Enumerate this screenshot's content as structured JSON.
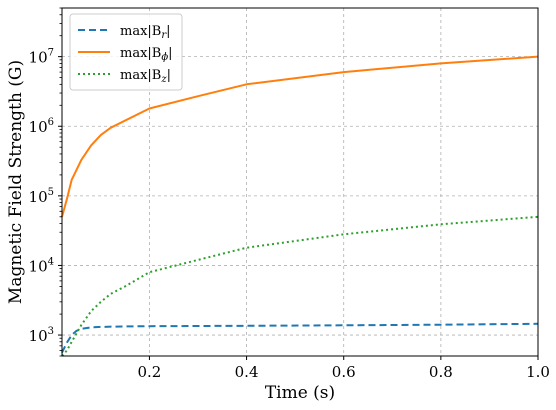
{
  "chart_data": {
    "type": "line",
    "xlabel": "Time (s)",
    "ylabel": "Magnetic Field Strength (G)",
    "xlim": [
      0.02,
      1.0
    ],
    "ylim": [
      500,
      50000000
    ],
    "yscale": "log",
    "grid": true,
    "legend_position": "top-left",
    "x_ticks": [
      {
        "value": 0.2,
        "label": "0.2"
      },
      {
        "value": 0.4,
        "label": "0.4"
      },
      {
        "value": 0.6,
        "label": "0.6"
      },
      {
        "value": 0.8,
        "label": "0.8"
      },
      {
        "value": 1.0,
        "label": "1.0"
      }
    ],
    "y_ticks": [
      {
        "value": 1000,
        "base": "10",
        "exp": "3"
      },
      {
        "value": 10000,
        "base": "10",
        "exp": "4"
      },
      {
        "value": 100000,
        "base": "10",
        "exp": "5"
      },
      {
        "value": 1000000,
        "base": "10",
        "exp": "6"
      },
      {
        "value": 10000000,
        "base": "10",
        "exp": "7"
      }
    ],
    "series": [
      {
        "name_prefix": "max|B",
        "name_sub": "r",
        "name_suffix": "|",
        "color": "#1f77b4",
        "dash": "7,4",
        "points": [
          [
            0.02,
            560
          ],
          [
            0.03,
            780
          ],
          [
            0.04,
            1000
          ],
          [
            0.05,
            1150
          ],
          [
            0.06,
            1230
          ],
          [
            0.08,
            1290
          ],
          [
            0.1,
            1310
          ],
          [
            0.15,
            1330
          ],
          [
            0.2,
            1340
          ],
          [
            0.4,
            1360
          ],
          [
            0.6,
            1380
          ],
          [
            0.8,
            1410
          ],
          [
            1.0,
            1450
          ]
        ]
      },
      {
        "name_prefix": "max|B",
        "name_sub": "ϕ",
        "name_suffix": "|",
        "color": "#ff7f0e",
        "dash": "",
        "points": [
          [
            0.02,
            50000
          ],
          [
            0.03,
            90000
          ],
          [
            0.04,
            170000
          ],
          [
            0.06,
            330000
          ],
          [
            0.08,
            530000
          ],
          [
            0.1,
            750000
          ],
          [
            0.12,
            950000
          ],
          [
            0.2,
            1800000
          ],
          [
            0.3,
            2700000
          ],
          [
            0.4,
            4000000
          ],
          [
            0.6,
            6000000
          ],
          [
            0.8,
            8000000
          ],
          [
            1.0,
            10000000
          ]
        ]
      },
      {
        "name_prefix": "max|B",
        "name_sub": "z",
        "name_suffix": "|",
        "color": "#2ca02c",
        "dash": "2,3",
        "points": [
          [
            0.02,
            500
          ],
          [
            0.03,
            600
          ],
          [
            0.04,
            800
          ],
          [
            0.06,
            1400
          ],
          [
            0.08,
            2200
          ],
          [
            0.1,
            3000
          ],
          [
            0.12,
            3900
          ],
          [
            0.15,
            5000
          ],
          [
            0.2,
            8000
          ],
          [
            0.3,
            12000
          ],
          [
            0.4,
            18000
          ],
          [
            0.6,
            28000
          ],
          [
            0.8,
            39000
          ],
          [
            1.0,
            50000
          ]
        ]
      }
    ]
  }
}
